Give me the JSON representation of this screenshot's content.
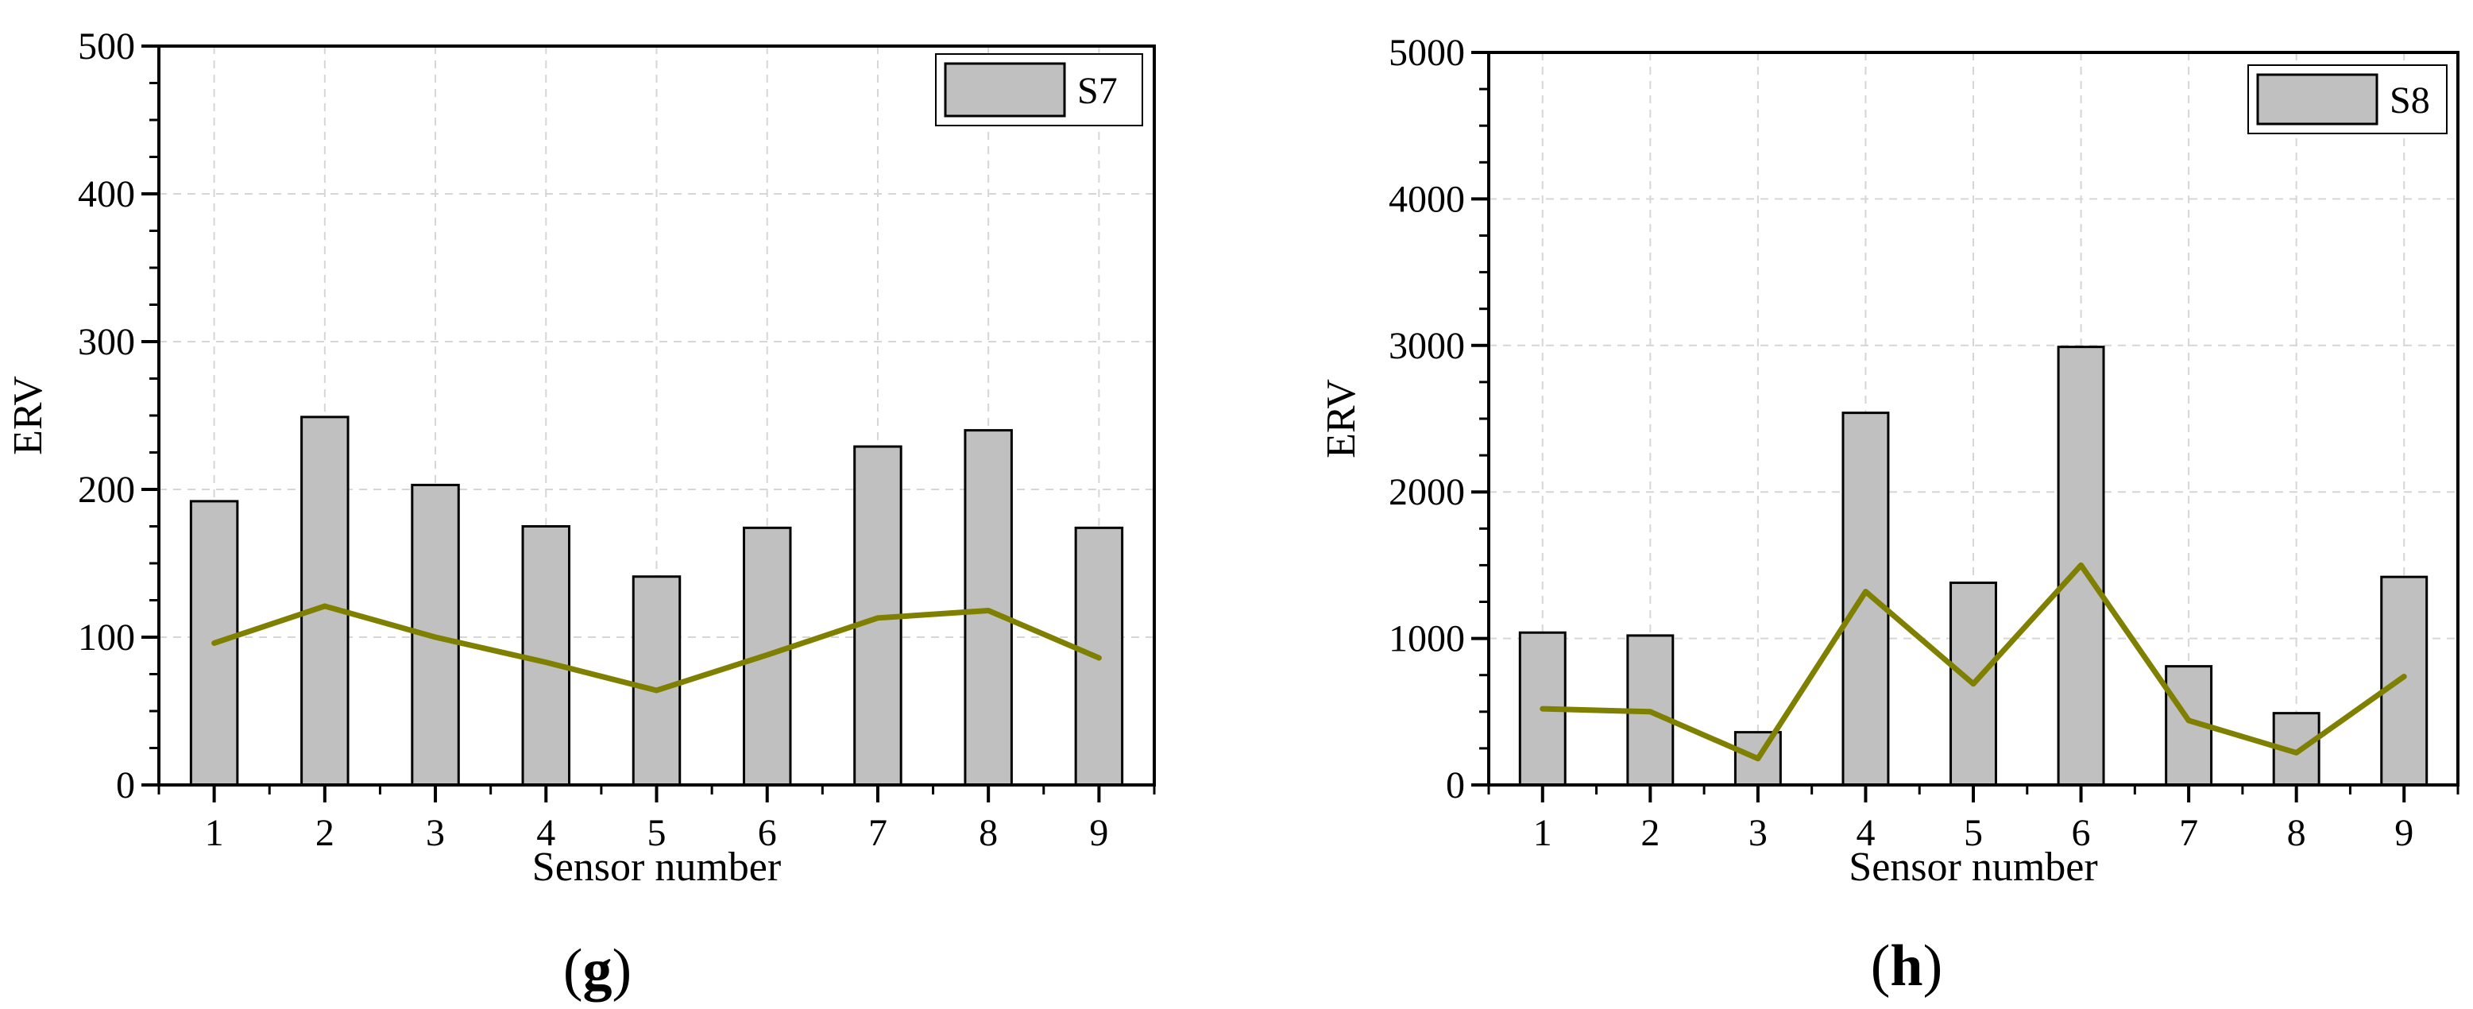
{
  "chart_data": [
    {
      "type": "bar",
      "panel_label": "g",
      "xlabel": "Sensor number",
      "ylabel": "ERV",
      "categories": [
        "1",
        "2",
        "3",
        "4",
        "5",
        "6",
        "7",
        "8",
        "9"
      ],
      "ylim": [
        0,
        500
      ],
      "yticks": [
        0,
        100,
        200,
        300,
        400,
        500
      ],
      "grid": true,
      "legend_position": "top-right",
      "series": [
        {
          "name": "S7",
          "kind": "bar",
          "color": "#c0c0c0",
          "values": [
            192,
            249,
            203,
            175,
            141,
            174,
            229,
            240,
            174
          ]
        },
        {
          "kind": "line",
          "color": "#7f7f00",
          "values": [
            96,
            121,
            100,
            83,
            64,
            88,
            113,
            118,
            86
          ]
        }
      ]
    },
    {
      "type": "bar",
      "panel_label": "h",
      "xlabel": "Sensor number",
      "ylabel": "ERV",
      "categories": [
        "1",
        "2",
        "3",
        "4",
        "5",
        "6",
        "7",
        "8",
        "9"
      ],
      "ylim": [
        0,
        5000
      ],
      "yticks": [
        0,
        1000,
        2000,
        3000,
        4000,
        5000
      ],
      "grid": true,
      "legend_position": "top-right",
      "series": [
        {
          "name": "S8",
          "kind": "bar",
          "color": "#c0c0c0",
          "values": [
            1040,
            1020,
            360,
            2540,
            1380,
            2990,
            810,
            490,
            1420
          ]
        },
        {
          "kind": "line",
          "color": "#7f7f00",
          "values": [
            520,
            500,
            180,
            1320,
            690,
            1500,
            440,
            220,
            740
          ]
        }
      ]
    }
  ]
}
